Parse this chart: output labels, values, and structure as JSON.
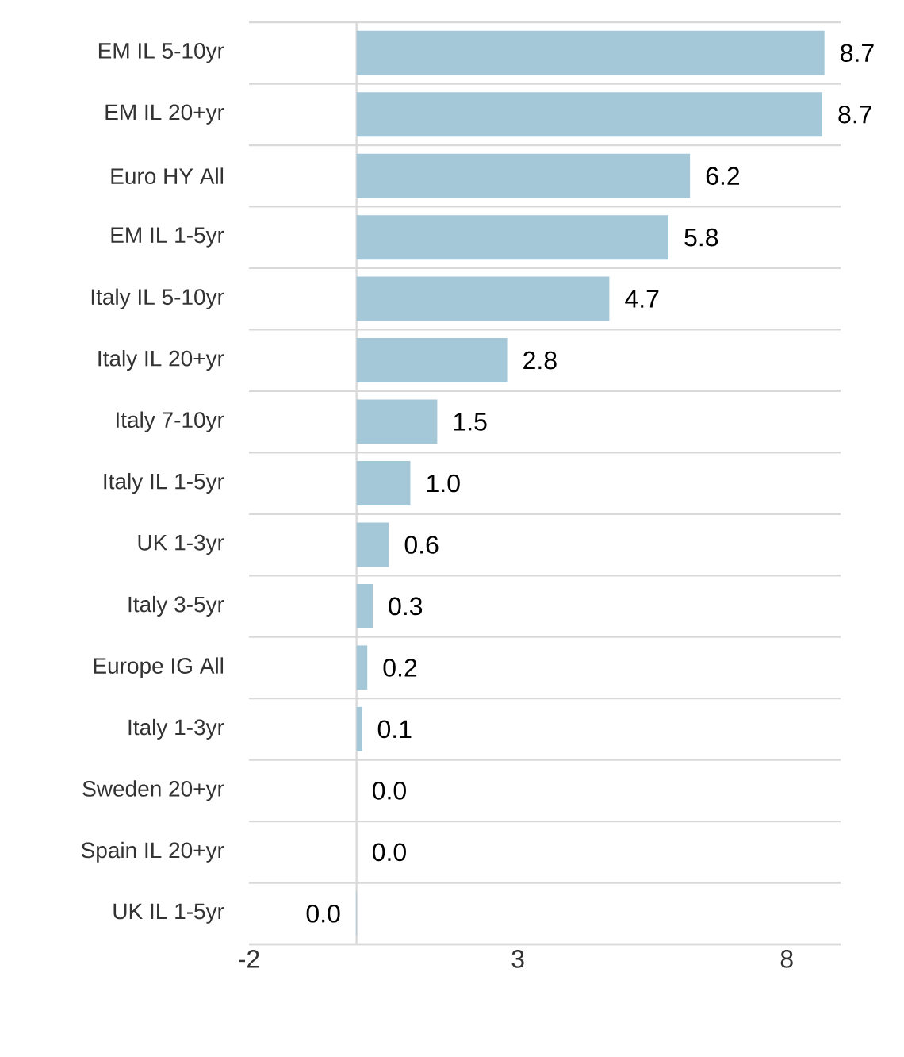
{
  "chart_data": {
    "type": "bar",
    "orientation": "horizontal",
    "categories": [
      "EM IL 5-10yr",
      "EM IL 20+yr",
      "Euro HY All",
      "EM IL 1-5yr",
      "Italy IL 5-10yr",
      "Italy IL 20+yr",
      "Italy 7-10yr",
      "Italy IL 1-5yr",
      "UK 1-3yr",
      "Italy 3-5yr",
      "Europe IG All",
      "Italy 1-3yr",
      "Sweden 20+yr",
      "Spain IL 20+yr",
      "UK IL 1-5yr"
    ],
    "values": [
      8.7,
      8.66,
      6.2,
      5.8,
      4.7,
      2.8,
      1.5,
      1.0,
      0.6,
      0.3,
      0.2,
      0.1,
      0.0,
      0.0,
      -0.01
    ],
    "value_labels": [
      "8.7",
      "8.7",
      "6.2",
      "5.8",
      "4.7",
      "2.8",
      "1.5",
      "1.0",
      "0.6",
      "0.3",
      "0.2",
      "0.1",
      "0.0",
      "0.0",
      "0.0"
    ],
    "color": "#a5c8d8",
    "xlim": [
      -2,
      9
    ],
    "xticks": [
      -2,
      3,
      8
    ],
    "grid": "y"
  }
}
